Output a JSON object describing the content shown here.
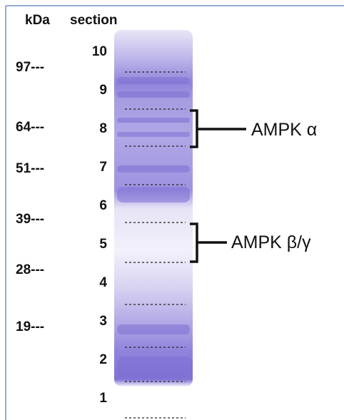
{
  "header": {
    "kda": "kDa",
    "section": "section"
  },
  "markers": [
    "97---",
    "64---",
    "51---",
    "39---",
    "28---",
    "19---"
  ],
  "sections": [
    "10",
    "9",
    "8",
    "7",
    "6",
    "5",
    "4",
    "3",
    "2",
    "1"
  ],
  "annotations": [
    "AMPK α",
    "AMPK β/γ"
  ]
}
